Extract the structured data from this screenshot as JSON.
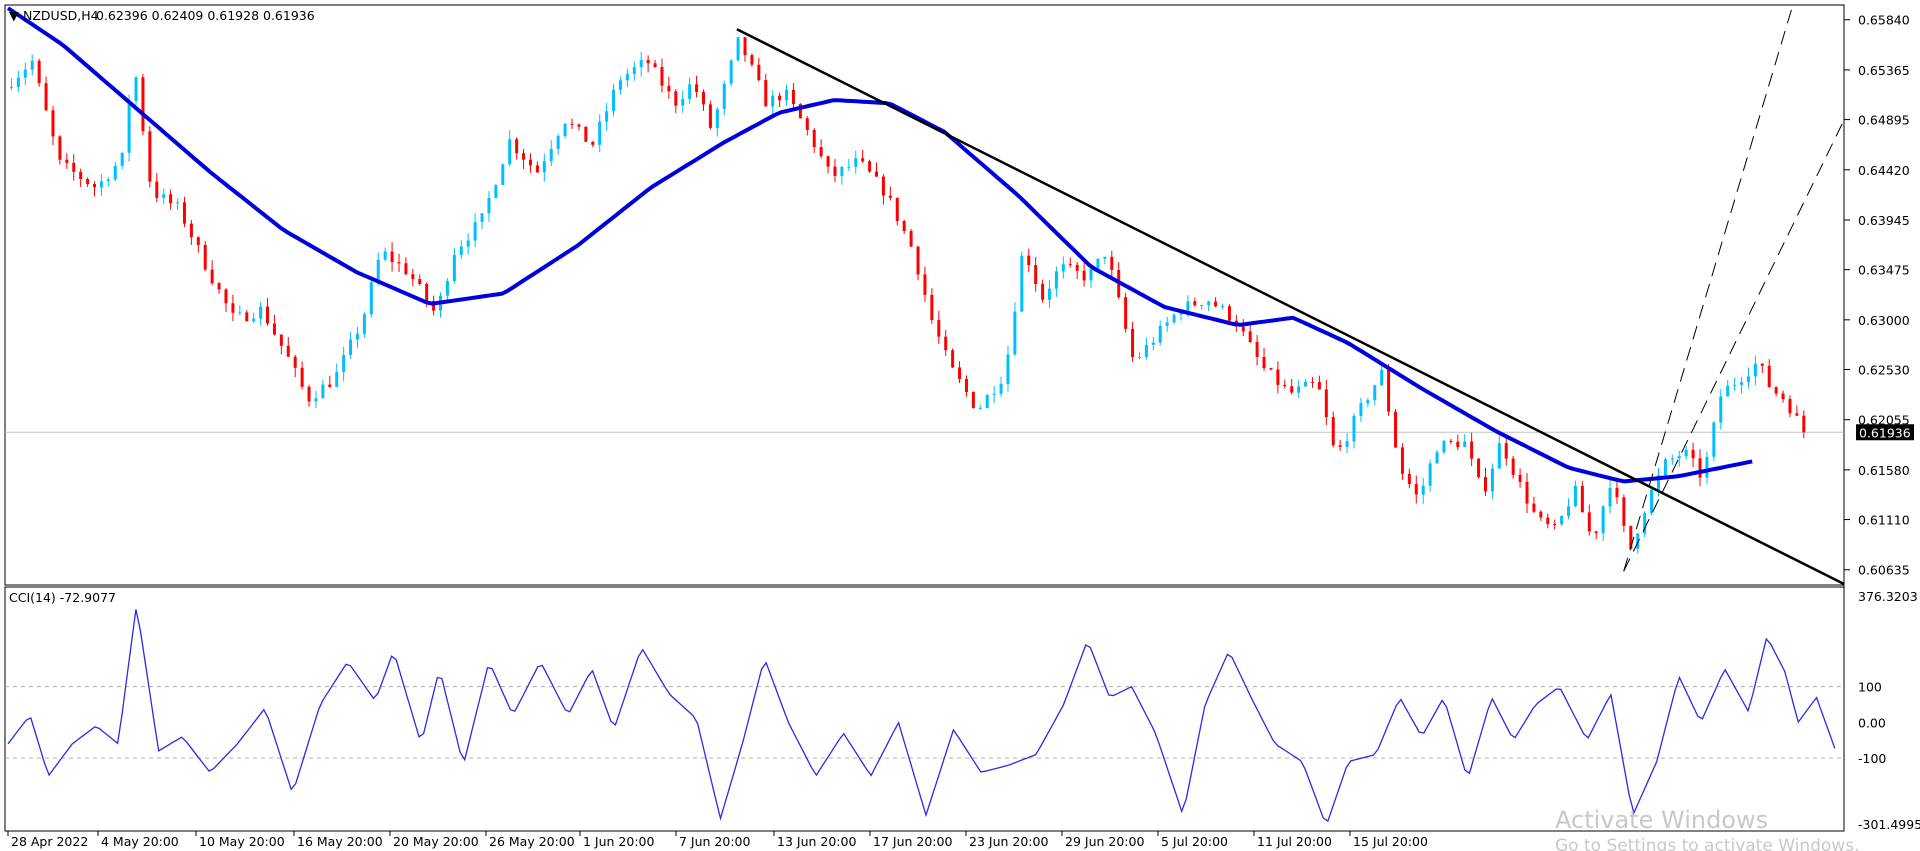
{
  "header": {
    "symbol": "NZDUSD,H4",
    "ohlc": "0.62396 0.62409 0.61928 0.61936"
  },
  "indicator": {
    "label": "CCI(14) -72.9077",
    "levels_text": [
      "376.3203",
      "100",
      "0.00",
      "-100",
      "-301.4995"
    ]
  },
  "price_axis": {
    "ticks": [
      "0.65840",
      "0.65365",
      "0.64895",
      "0.64420",
      "0.63945",
      "0.63475",
      "0.63000",
      "0.62530",
      "0.62055",
      "0.61580",
      "0.61110",
      "0.60635"
    ],
    "current": "0.61936"
  },
  "time_axis": {
    "labels": [
      "28 Apr 2022",
      "4 May 20:00",
      "10 May 20:00",
      "16 May 20:00",
      "20 May 20:00",
      "26 May 20:00",
      "1 Jun 20:00",
      "7 Jun 20:00",
      "13 Jun 20:00",
      "17 Jun 20:00",
      "23 Jun 20:00",
      "29 Jun 20:00",
      "5 Jul 20:00",
      "11 Jul 20:00",
      "15 Jul 20:00"
    ]
  },
  "watermark": {
    "line1": "Activate Windows",
    "line2": "Go to Settings to activate Windows."
  },
  "colors": {
    "bull": "#00bfff",
    "bear": "#ff0000",
    "ma": "#0000dd",
    "cci": "#2a2ae6",
    "trendline": "#000000",
    "grid_border": "#000000"
  },
  "chart_data": {
    "type": "candlestick",
    "symbol": "NZDUSD",
    "timeframe": "H4",
    "price_range": [
      0.605,
      0.6597
    ],
    "moving_average": {
      "name": "",
      "anchors": [
        {
          "t": 0.0,
          "v": 0.6595
        },
        {
          "t": 0.03,
          "v": 0.656
        },
        {
          "t": 0.07,
          "v": 0.65
        },
        {
          "t": 0.11,
          "v": 0.644
        },
        {
          "t": 0.15,
          "v": 0.6385
        },
        {
          "t": 0.19,
          "v": 0.6345
        },
        {
          "t": 0.23,
          "v": 0.6315
        },
        {
          "t": 0.27,
          "v": 0.6325
        },
        {
          "t": 0.31,
          "v": 0.637
        },
        {
          "t": 0.35,
          "v": 0.6425
        },
        {
          "t": 0.39,
          "v": 0.6468
        },
        {
          "t": 0.42,
          "v": 0.6496
        },
        {
          "t": 0.45,
          "v": 0.6508
        },
        {
          "t": 0.48,
          "v": 0.6505
        },
        {
          "t": 0.51,
          "v": 0.6478
        },
        {
          "t": 0.55,
          "v": 0.6418
        },
        {
          "t": 0.59,
          "v": 0.635
        },
        {
          "t": 0.63,
          "v": 0.6312
        },
        {
          "t": 0.67,
          "v": 0.6295
        },
        {
          "t": 0.7,
          "v": 0.6302
        },
        {
          "t": 0.73,
          "v": 0.6278
        },
        {
          "t": 0.77,
          "v": 0.6235
        },
        {
          "t": 0.81,
          "v": 0.6195
        },
        {
          "t": 0.85,
          "v": 0.616
        },
        {
          "t": 0.88,
          "v": 0.6147
        },
        {
          "t": 0.91,
          "v": 0.6152
        },
        {
          "t": 0.95,
          "v": 0.6166
        }
      ]
    },
    "trendline": {
      "from": {
        "t": 0.397,
        "v": 0.6575
      },
      "to": {
        "t": 1.0,
        "v": 0.605
      }
    },
    "channel": [
      {
        "from": {
          "t": 0.88,
          "v": 0.6062
        },
        "to": {
          "t": 1.0,
          "v": 0.66
        }
      },
      {
        "from": {
          "t": 0.88,
          "v": 0.6062
        },
        "to": {
          "t": 1.0,
          "v": 0.6489
        }
      }
    ],
    "price_anchors": [
      {
        "t": 0.0,
        "v": 0.652
      },
      {
        "t": 0.015,
        "v": 0.6545
      },
      {
        "t": 0.03,
        "v": 0.6448
      },
      {
        "t": 0.05,
        "v": 0.6425
      },
      {
        "t": 0.065,
        "v": 0.6455
      },
      {
        "t": 0.07,
        "v": 0.655
      },
      {
        "t": 0.08,
        "v": 0.6422
      },
      {
        "t": 0.095,
        "v": 0.6405
      },
      {
        "t": 0.11,
        "v": 0.635
      },
      {
        "t": 0.125,
        "v": 0.63
      },
      {
        "t": 0.14,
        "v": 0.631
      },
      {
        "t": 0.155,
        "v": 0.6262
      },
      {
        "t": 0.165,
        "v": 0.6225
      },
      {
        "t": 0.18,
        "v": 0.6245
      },
      {
        "t": 0.195,
        "v": 0.63
      },
      {
        "t": 0.205,
        "v": 0.6365
      },
      {
        "t": 0.22,
        "v": 0.6345
      },
      {
        "t": 0.235,
        "v": 0.6305
      },
      {
        "t": 0.245,
        "v": 0.6365
      },
      {
        "t": 0.26,
        "v": 0.6395
      },
      {
        "t": 0.275,
        "v": 0.647
      },
      {
        "t": 0.29,
        "v": 0.644
      },
      {
        "t": 0.305,
        "v": 0.649
      },
      {
        "t": 0.32,
        "v": 0.6465
      },
      {
        "t": 0.335,
        "v": 0.6528
      },
      {
        "t": 0.35,
        "v": 0.6545
      },
      {
        "t": 0.365,
        "v": 0.6505
      },
      {
        "t": 0.375,
        "v": 0.6525
      },
      {
        "t": 0.385,
        "v": 0.648
      },
      {
        "t": 0.4,
        "v": 0.6565
      },
      {
        "t": 0.415,
        "v": 0.6505
      },
      {
        "t": 0.425,
        "v": 0.6515
      },
      {
        "t": 0.44,
        "v": 0.647
      },
      {
        "t": 0.45,
        "v": 0.6435
      },
      {
        "t": 0.465,
        "v": 0.645
      },
      {
        "t": 0.48,
        "v": 0.642
      },
      {
        "t": 0.495,
        "v": 0.6365
      },
      {
        "t": 0.505,
        "v": 0.63
      },
      {
        "t": 0.515,
        "v": 0.6255
      },
      {
        "t": 0.53,
        "v": 0.6215
      },
      {
        "t": 0.545,
        "v": 0.625
      },
      {
        "t": 0.555,
        "v": 0.637
      },
      {
        "t": 0.565,
        "v": 0.632
      },
      {
        "t": 0.575,
        "v": 0.635
      },
      {
        "t": 0.59,
        "v": 0.634
      },
      {
        "t": 0.6,
        "v": 0.6365
      },
      {
        "t": 0.615,
        "v": 0.626
      },
      {
        "t": 0.625,
        "v": 0.628
      },
      {
        "t": 0.64,
        "v": 0.631
      },
      {
        "t": 0.655,
        "v": 0.632
      },
      {
        "t": 0.67,
        "v": 0.63
      },
      {
        "t": 0.685,
        "v": 0.6255
      },
      {
        "t": 0.7,
        "v": 0.623
      },
      {
        "t": 0.715,
        "v": 0.624
      },
      {
        "t": 0.725,
        "v": 0.617
      },
      {
        "t": 0.74,
        "v": 0.622
      },
      {
        "t": 0.75,
        "v": 0.625
      },
      {
        "t": 0.76,
        "v": 0.616
      },
      {
        "t": 0.77,
        "v": 0.613
      },
      {
        "t": 0.78,
        "v": 0.618
      },
      {
        "t": 0.795,
        "v": 0.6185
      },
      {
        "t": 0.805,
        "v": 0.6135
      },
      {
        "t": 0.815,
        "v": 0.6185
      },
      {
        "t": 0.825,
        "v": 0.6145
      },
      {
        "t": 0.835,
        "v": 0.611
      },
      {
        "t": 0.845,
        "v": 0.61
      },
      {
        "t": 0.855,
        "v": 0.614
      },
      {
        "t": 0.865,
        "v": 0.609
      },
      {
        "t": 0.875,
        "v": 0.615
      },
      {
        "t": 0.885,
        "v": 0.608
      },
      {
        "t": 0.895,
        "v": 0.613
      },
      {
        "t": 0.905,
        "v": 0.6165
      },
      {
        "t": 0.915,
        "v": 0.6175
      },
      {
        "t": 0.925,
        "v": 0.615
      },
      {
        "t": 0.935,
        "v": 0.623
      },
      {
        "t": 0.945,
        "v": 0.6245
      },
      {
        "t": 0.955,
        "v": 0.626
      },
      {
        "t": 0.962,
        "v": 0.6235
      },
      {
        "t": 0.97,
        "v": 0.6225
      },
      {
        "t": 0.98,
        "v": 0.6194
      }
    ],
    "cci_range": [
      -301.4995,
      376.3203
    ],
    "cci_levels": [
      100,
      0,
      -100
    ],
    "cci_last": -72.9077,
    "cci_anchors": [
      {
        "t": 0.0,
        "v": -60
      },
      {
        "t": 0.012,
        "v": 20
      },
      {
        "t": 0.022,
        "v": -150
      },
      {
        "t": 0.035,
        "v": -60
      },
      {
        "t": 0.048,
        "v": -10
      },
      {
        "t": 0.06,
        "v": -60
      },
      {
        "t": 0.07,
        "v": 330
      },
      {
        "t": 0.082,
        "v": -80
      },
      {
        "t": 0.095,
        "v": -40
      },
      {
        "t": 0.11,
        "v": -140
      },
      {
        "t": 0.125,
        "v": -60
      },
      {
        "t": 0.14,
        "v": 40
      },
      {
        "t": 0.155,
        "v": -200
      },
      {
        "t": 0.17,
        "v": 50
      },
      {
        "t": 0.185,
        "v": 170
      },
      {
        "t": 0.2,
        "v": 60
      },
      {
        "t": 0.21,
        "v": 200
      },
      {
        "t": 0.225,
        "v": -60
      },
      {
        "t": 0.235,
        "v": 150
      },
      {
        "t": 0.248,
        "v": -120
      },
      {
        "t": 0.262,
        "v": 170
      },
      {
        "t": 0.275,
        "v": 20
      },
      {
        "t": 0.29,
        "v": 170
      },
      {
        "t": 0.305,
        "v": 20
      },
      {
        "t": 0.318,
        "v": 150
      },
      {
        "t": 0.33,
        "v": -20
      },
      {
        "t": 0.345,
        "v": 210
      },
      {
        "t": 0.36,
        "v": 80
      },
      {
        "t": 0.375,
        "v": 10
      },
      {
        "t": 0.388,
        "v": -270
      },
      {
        "t": 0.4,
        "v": -60
      },
      {
        "t": 0.412,
        "v": 180
      },
      {
        "t": 0.425,
        "v": 0
      },
      {
        "t": 0.44,
        "v": -150
      },
      {
        "t": 0.455,
        "v": -30
      },
      {
        "t": 0.47,
        "v": -150
      },
      {
        "t": 0.485,
        "v": 0
      },
      {
        "t": 0.5,
        "v": -260
      },
      {
        "t": 0.515,
        "v": -20
      },
      {
        "t": 0.53,
        "v": -140
      },
      {
        "t": 0.545,
        "v": -120
      },
      {
        "t": 0.56,
        "v": -90
      },
      {
        "t": 0.575,
        "v": 50
      },
      {
        "t": 0.588,
        "v": 230
      },
      {
        "t": 0.6,
        "v": 70
      },
      {
        "t": 0.612,
        "v": 100
      },
      {
        "t": 0.625,
        "v": -30
      },
      {
        "t": 0.64,
        "v": -260
      },
      {
        "t": 0.652,
        "v": 50
      },
      {
        "t": 0.665,
        "v": 200
      },
      {
        "t": 0.678,
        "v": 60
      },
      {
        "t": 0.69,
        "v": -60
      },
      {
        "t": 0.705,
        "v": -110
      },
      {
        "t": 0.718,
        "v": -290
      },
      {
        "t": 0.73,
        "v": -110
      },
      {
        "t": 0.745,
        "v": -90
      },
      {
        "t": 0.758,
        "v": 70
      },
      {
        "t": 0.77,
        "v": -40
      },
      {
        "t": 0.782,
        "v": 70
      },
      {
        "t": 0.795,
        "v": -160
      },
      {
        "t": 0.808,
        "v": 70
      },
      {
        "t": 0.82,
        "v": -50
      },
      {
        "t": 0.832,
        "v": 50
      },
      {
        "t": 0.845,
        "v": 100
      },
      {
        "t": 0.86,
        "v": -50
      },
      {
        "t": 0.873,
        "v": 80
      },
      {
        "t": 0.885,
        "v": -260
      },
      {
        "t": 0.898,
        "v": -110
      },
      {
        "t": 0.91,
        "v": 130
      },
      {
        "t": 0.922,
        "v": 0
      },
      {
        "t": 0.935,
        "v": 150
      },
      {
        "t": 0.948,
        "v": 30
      },
      {
        "t": 0.958,
        "v": 240
      },
      {
        "t": 0.968,
        "v": 140
      },
      {
        "t": 0.975,
        "v": 0
      },
      {
        "t": 0.985,
        "v": 70
      },
      {
        "t": 0.995,
        "v": -73
      }
    ]
  }
}
